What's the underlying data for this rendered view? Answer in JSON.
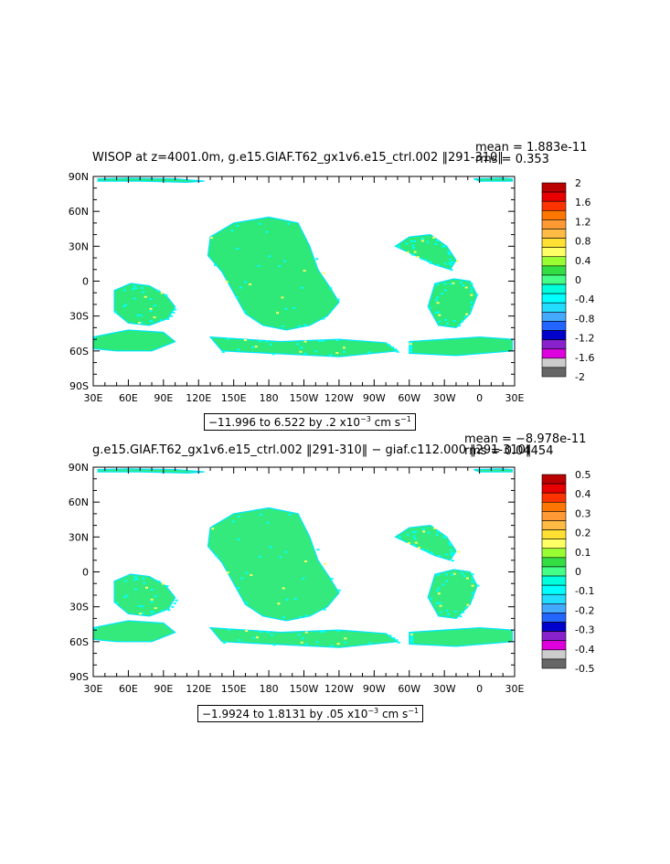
{
  "chart_data": [
    {
      "type": "heatmap",
      "title": "WISOP at z=4001.0m, g.e15.GIAF.T62_gx1v6.e15_ctrl.002 ‖291-310‖",
      "stats": {
        "mean": "mean = 1.883e-11",
        "rms": "rms = 0.353"
      },
      "y_ticks": [
        "90N",
        "60N",
        "30N",
        "0",
        "30S",
        "60S",
        "90S"
      ],
      "x_ticks": [
        "30E",
        "60E",
        "90E",
        "120E",
        "150E",
        "180",
        "150W",
        "120W",
        "90W",
        "60W",
        "30W",
        "0",
        "30E"
      ],
      "range_text": {
        "main": "−11.996 to 6.522 by .2 x10",
        "exp": "−3",
        "unit": " cm s",
        "unit_exp": "−1"
      },
      "colorbar_labels": [
        "2",
        "1.6",
        "1.2",
        "0.8",
        "0.4",
        "0",
        "-0.4",
        "-0.8",
        "-1.2",
        "-1.6",
        "-2"
      ],
      "colorbar_colors": [
        "#bb0000",
        "#e80000",
        "#ff3300",
        "#ff7700",
        "#ff9933",
        "#ffbb44",
        "#ffe033",
        "#ffff66",
        "#99ff33",
        "#33dd44",
        "#44ff88",
        "#00ffdd",
        "#00ffff",
        "#22ddff",
        "#44aaff",
        "#2266ff",
        "#0000cc",
        "#8822cc",
        "#dd00dd",
        "#cccccc",
        "#666666"
      ]
    },
    {
      "type": "heatmap",
      "title": "g.e15.GIAF.T62_gx1v6.e15_ctrl.002 ‖291-310‖ − giaf.c112.000 ‖291-310‖",
      "stats": {
        "mean": "mean = −8.978e-11",
        "rms": "rms = 0.04454"
      },
      "y_ticks": [
        "90N",
        "60N",
        "30N",
        "0",
        "30S",
        "60S",
        "90S"
      ],
      "x_ticks": [
        "30E",
        "60E",
        "90E",
        "120E",
        "150E",
        "180",
        "150W",
        "120W",
        "90W",
        "60W",
        "30W",
        "0",
        "30E"
      ],
      "range_text": {
        "main": "−1.9924 to 1.8131 by .05 x10",
        "exp": "−3",
        "unit": " cm s",
        "unit_exp": "−1"
      },
      "colorbar_labels": [
        "0.5",
        "0.4",
        "0.3",
        "0.2",
        "0.1",
        "0",
        "-0.1",
        "-0.2",
        "-0.3",
        "-0.4",
        "-0.5"
      ],
      "colorbar_colors": [
        "#bb0000",
        "#e80000",
        "#ff3300",
        "#ff7700",
        "#ff9933",
        "#ffbb44",
        "#ffe033",
        "#ffff66",
        "#99ff33",
        "#33dd44",
        "#44ff88",
        "#00ffdd",
        "#00ffff",
        "#22ddff",
        "#44aaff",
        "#2266ff",
        "#0000cc",
        "#8822cc",
        "#dd00dd",
        "#cccccc",
        "#666666"
      ]
    }
  ]
}
